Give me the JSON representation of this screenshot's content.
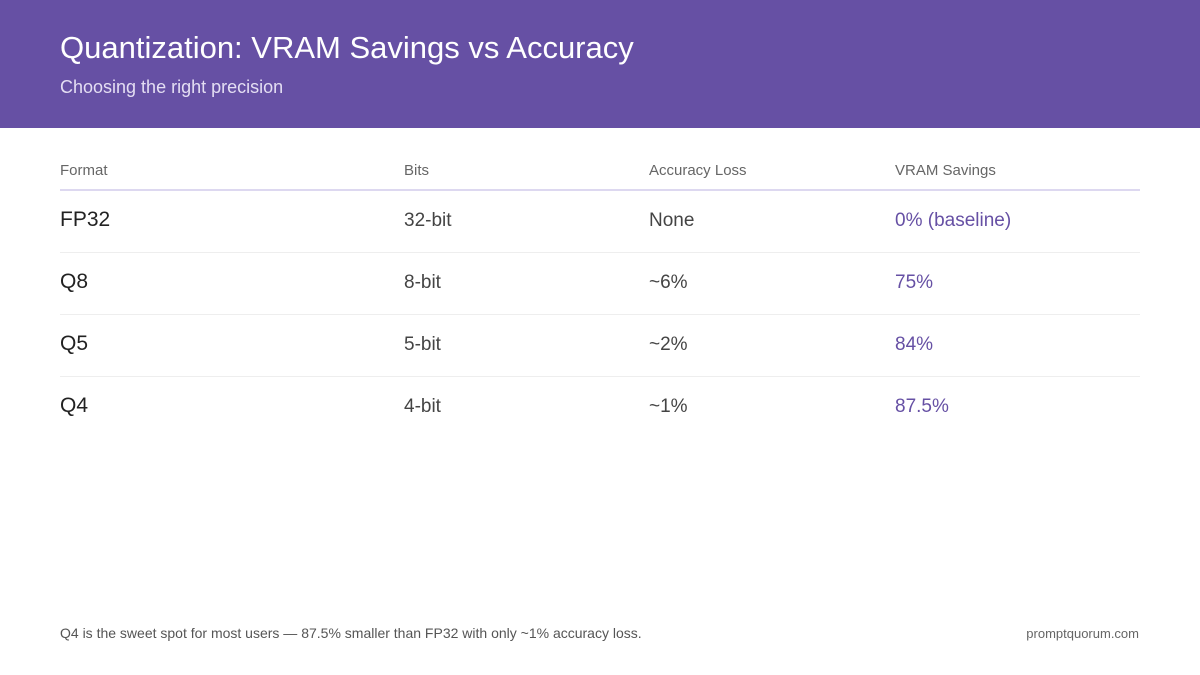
{
  "header": {
    "title": "Quantization: VRAM Savings vs Accuracy",
    "subtitle": "Choosing the right precision",
    "background": "#6650a4"
  },
  "table": {
    "columns": [
      "Format",
      "Bits",
      "Accuracy Loss",
      "VRAM Savings"
    ],
    "rows": [
      {
        "format": "FP32",
        "bits": "32-bit",
        "loss": "None",
        "savings": "0% (baseline)"
      },
      {
        "format": "Q8",
        "bits": "8-bit",
        "loss": "~6%",
        "savings": "75%"
      },
      {
        "format": "Q5",
        "bits": "5-bit",
        "loss": "~2%",
        "savings": "84%"
      },
      {
        "format": "Q4",
        "bits": "4-bit",
        "loss": "~1%",
        "savings": "87.5%"
      }
    ],
    "accent_color": "#6650a4"
  },
  "footer": {
    "note": "Q4 is the sweet spot for most users — 87.5% smaller than FP32 with only ~1% accuracy loss.",
    "site": "promptquorum.com"
  }
}
